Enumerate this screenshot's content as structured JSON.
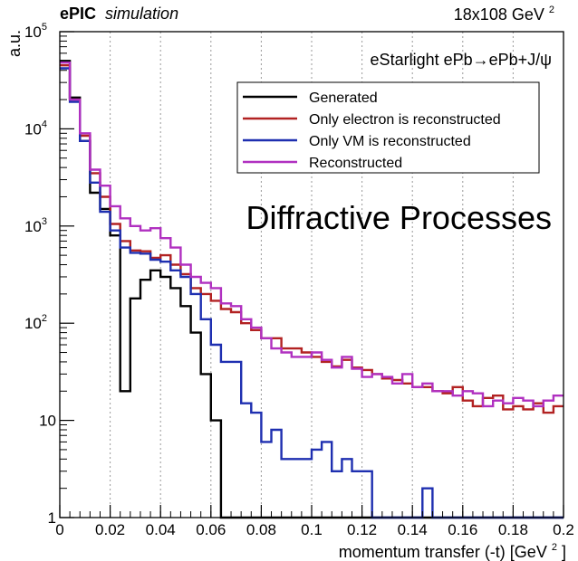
{
  "header": {
    "experiment": "ePIC",
    "tag": "simulation",
    "energy": "18x108 GeV",
    "energy_sup": "2"
  },
  "overlay_text": "Diffractive Processes",
  "chart_data": {
    "type": "line",
    "subtype": "step-histogram",
    "title": "eStarlight ePb→ePb+J/ψ",
    "xlabel": "momentum transfer (-t) [GeV",
    "xlabel_sup": "2",
    "xlabel_close": "]",
    "ylabel": "a.u.",
    "xlim": [
      0,
      0.2
    ],
    "ylim": [
      1,
      100000
    ],
    "ylog": true,
    "grid_x": true,
    "legend_position": "top-right",
    "x_ticks": [
      "0",
      "0.02",
      "0.04",
      "0.06",
      "0.08",
      "0.1",
      "0.12",
      "0.14",
      "0.16",
      "0.18",
      "0.2"
    ],
    "x_tick_values": [
      0,
      0.02,
      0.04,
      0.06,
      0.08,
      0.1,
      0.12,
      0.14,
      0.16,
      0.18,
      0.2
    ],
    "y_ticks": [
      {
        "value": 1,
        "base": "1",
        "exp": ""
      },
      {
        "value": 10,
        "base": "10",
        "exp": ""
      },
      {
        "value": 100,
        "base": "10",
        "exp": "2"
      },
      {
        "value": 1000,
        "base": "10",
        "exp": "3"
      },
      {
        "value": 10000,
        "base": "10",
        "exp": "4"
      },
      {
        "value": 100000,
        "base": "10",
        "exp": "5"
      }
    ],
    "bin_width": 0.004,
    "series": [
      {
        "name": "Generated",
        "color": "#000000",
        "values": [
          50000,
          21000,
          7500,
          2200,
          1500,
          800,
          20,
          180,
          280,
          350,
          300,
          230,
          150,
          80,
          30,
          10,
          1,
          1,
          1,
          1,
          1,
          1,
          1,
          1,
          1,
          1,
          1,
          1,
          1,
          1,
          1,
          1,
          1,
          1,
          1,
          1,
          1,
          1,
          1,
          1,
          1,
          1,
          1,
          1,
          1,
          1,
          1,
          1,
          1,
          1
        ]
      },
      {
        "name": "Only electron is reconstructed",
        "color": "#b22222",
        "values": [
          45000,
          20000,
          8500,
          3500,
          2000,
          1050,
          700,
          560,
          550,
          470,
          500,
          400,
          320,
          230,
          200,
          170,
          140,
          130,
          100,
          85,
          70,
          70,
          55,
          55,
          50,
          45,
          40,
          36,
          42,
          35,
          33,
          30,
          27,
          26,
          24,
          22,
          22,
          20,
          19,
          22,
          16,
          14,
          17,
          18,
          13,
          14,
          13,
          15,
          12,
          14
        ]
      },
      {
        "name": "Only VM is reconstructed",
        "color": "#1e2fb0",
        "values": [
          42000,
          19000,
          7500,
          2800,
          1400,
          900,
          600,
          530,
          520,
          450,
          430,
          350,
          300,
          200,
          110,
          60,
          40,
          40,
          15,
          12,
          6,
          8,
          4,
          4,
          4,
          5,
          6,
          3,
          4,
          3,
          3,
          1,
          1,
          1,
          1,
          1,
          2,
          1,
          1,
          1,
          1,
          1,
          1,
          1,
          1,
          1,
          1,
          1,
          1,
          1
        ]
      },
      {
        "name": "Reconstructed",
        "color": "#b030c0",
        "values": [
          48000,
          20000,
          9000,
          3800,
          2600,
          1600,
          1200,
          1000,
          900,
          950,
          750,
          600,
          400,
          300,
          260,
          230,
          160,
          150,
          110,
          90,
          70,
          55,
          50,
          45,
          45,
          50,
          42,
          35,
          45,
          34,
          28,
          30,
          28,
          24,
          30,
          22,
          24,
          20,
          20,
          18,
          20,
          19,
          14,
          16,
          15,
          17,
          16,
          14,
          16,
          18
        ]
      }
    ]
  }
}
